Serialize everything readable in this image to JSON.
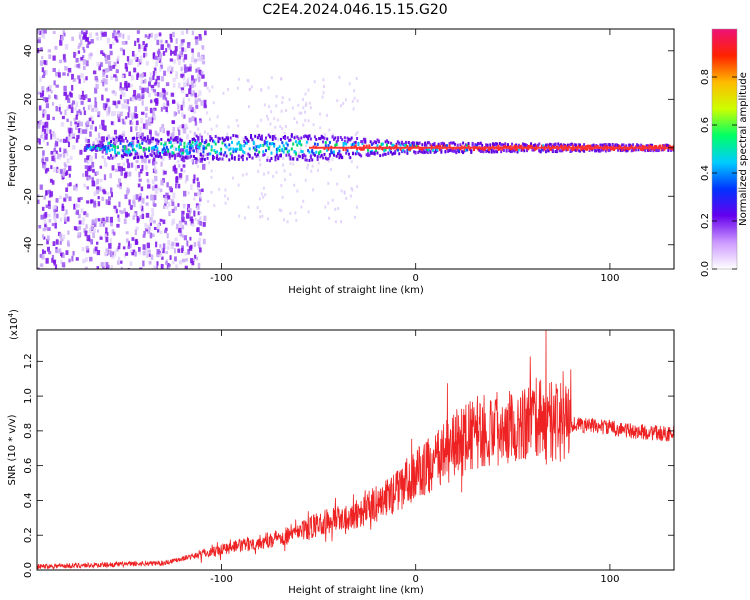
{
  "title": "C2E4.2024.046.15.15.G20",
  "chart_data": [
    {
      "type": "heatmap",
      "xlabel": "Height of straight line (km)",
      "ylabel": "Frequency (Hz)",
      "xlim": [
        -195,
        133
      ],
      "ylim": [
        -50,
        49
      ],
      "xticks": [
        -100,
        0,
        100
      ],
      "xtick_labels": [
        "-100",
        "0",
        "100"
      ],
      "yticks": [
        -40,
        -20,
        0,
        20,
        40
      ],
      "ytick_labels": [
        "-40",
        "-20",
        "0",
        "20",
        "40"
      ],
      "grid": false,
      "colorbar": {
        "label": "Normalized spectral amplitude",
        "range": [
          0,
          1
        ],
        "ticks": [
          0.0,
          0.2,
          0.4,
          0.6,
          0.8
        ],
        "tick_labels": [
          "0.0",
          "0.2",
          "0.4",
          "0.6",
          "0.8"
        ],
        "colormap": [
          "#ffffff",
          "#cc99ff",
          "#6600ee",
          "#0033ff",
          "#00ccff",
          "#00ff66",
          "#ccff00",
          "#ffbb00",
          "#ff2200",
          "#ee1177"
        ]
      },
      "features": {
        "noise_region_x": [
          -195,
          -117
        ],
        "main_band_center_hz": 0,
        "main_band_halfwidth_hz": [
          [
            -160,
            4
          ],
          [
            -60,
            5
          ],
          [
            0,
            2
          ],
          [
            133,
            1
          ]
        ],
        "line_color": "#ff3333",
        "line_start_x": -55
      }
    },
    {
      "type": "line",
      "xlabel": "Height of straight line (km)",
      "ylabel": "SNR (10 * v/v)",
      "y_multiplier_label": "(x10",
      "y_multiplier_exp": "4",
      "y_multiplier_close": ")",
      "xlim": [
        -195,
        133
      ],
      "ylim": [
        0,
        1.38
      ],
      "xticks": [
        -100,
        0,
        100
      ],
      "xtick_labels": [
        "-100",
        "0",
        "100"
      ],
      "yticks": [
        0.0,
        0.2,
        0.4,
        0.6,
        0.8,
        1.0,
        1.2
      ],
      "ytick_labels": [
        "0.0",
        "0.2",
        "0.4",
        "0.6",
        "0.8",
        "1.0",
        "1.2"
      ],
      "grid": false,
      "series": [
        {
          "color": "#ee2222",
          "envelope_x": [
            -195,
            -160,
            -130,
            -115,
            -100,
            -80,
            -60,
            -45,
            -30,
            -20,
            -10,
            0,
            10,
            20,
            30,
            40,
            50,
            60,
            66,
            70,
            80,
            90,
            100,
            110,
            120,
            133
          ],
          "envelope_y": [
            0.02,
            0.03,
            0.04,
            0.08,
            0.12,
            0.16,
            0.22,
            0.28,
            0.33,
            0.38,
            0.45,
            0.55,
            0.62,
            0.72,
            0.78,
            0.82,
            0.85,
            0.86,
            0.88,
            0.85,
            0.84,
            0.83,
            0.82,
            0.8,
            0.79,
            0.78
          ],
          "peak_x": 67,
          "peak_y": 1.38
        }
      ]
    }
  ]
}
